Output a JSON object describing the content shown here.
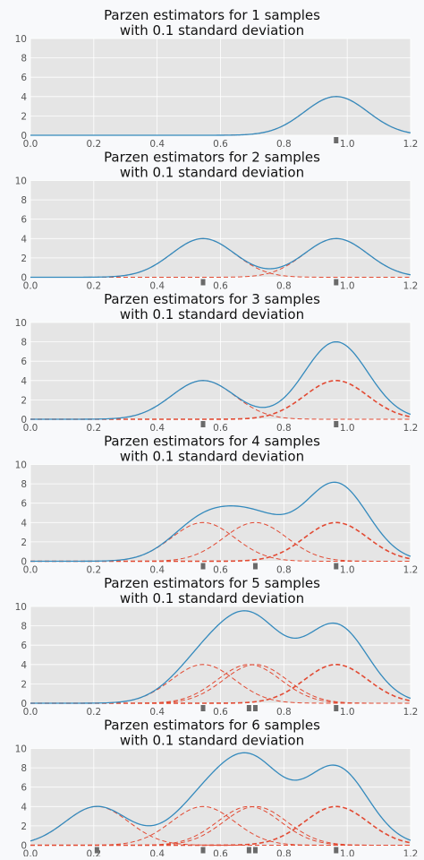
{
  "chart_data": [
    {
      "type": "line",
      "title": "Parzen estimators for 1 samples",
      "subtitle": "with 0.1 standard deviation",
      "samples": [
        0.965
      ],
      "ylim": [
        0,
        10
      ],
      "xlim": [
        0.0,
        1.2
      ],
      "sigma": 0.1,
      "grid": true,
      "xticks": [
        "0.0",
        "0.2",
        "0.4",
        "0.6",
        "0.8",
        "1.0",
        "1.2"
      ],
      "yticks": [
        "0",
        "2",
        "4",
        "6",
        "8",
        "10"
      ]
    },
    {
      "type": "line",
      "title": "Parzen estimators for 2 samples",
      "subtitle": "with 0.1 standard deviation",
      "samples": [
        0.545,
        0.965
      ],
      "ylim": [
        0,
        10
      ],
      "xlim": [
        0.0,
        1.2
      ],
      "sigma": 0.1,
      "grid": true,
      "xticks": [
        "0.0",
        "0.2",
        "0.4",
        "0.6",
        "0.8",
        "1.0",
        "1.2"
      ],
      "yticks": [
        "0",
        "2",
        "4",
        "6",
        "8",
        "10"
      ]
    },
    {
      "type": "line",
      "title": "Parzen estimators for 3 samples",
      "subtitle": "with 0.1 standard deviation",
      "samples": [
        0.545,
        0.965,
        0.965
      ],
      "ylim": [
        0,
        10
      ],
      "xlim": [
        0.0,
        1.2
      ],
      "sigma": 0.1,
      "grid": true,
      "xticks": [
        "0.0",
        "0.2",
        "0.4",
        "0.6",
        "0.8",
        "1.0",
        "1.2"
      ],
      "yticks": [
        "0",
        "2",
        "4",
        "6",
        "8",
        "10"
      ]
    },
    {
      "type": "line",
      "title": "Parzen estimators for 4 samples",
      "subtitle": "with 0.1 standard deviation",
      "samples": [
        0.545,
        0.71,
        0.965,
        0.965
      ],
      "ylim": [
        0,
        10
      ],
      "xlim": [
        0.0,
        1.2
      ],
      "sigma": 0.1,
      "grid": true,
      "xticks": [
        "0.0",
        "0.2",
        "0.4",
        "0.6",
        "0.8",
        "1.0",
        "1.2"
      ],
      "yticks": [
        "0",
        "2",
        "4",
        "6",
        "8",
        "10"
      ]
    },
    {
      "type": "line",
      "title": "Parzen estimators for 5 samples",
      "subtitle": "with 0.1 standard deviation",
      "samples": [
        0.545,
        0.69,
        0.71,
        0.965,
        0.965
      ],
      "ylim": [
        0,
        10
      ],
      "xlim": [
        0.0,
        1.2
      ],
      "sigma": 0.1,
      "grid": true,
      "xticks": [
        "0.0",
        "0.2",
        "0.4",
        "0.6",
        "0.8",
        "1.0",
        "1.2"
      ],
      "yticks": [
        "0",
        "2",
        "4",
        "6",
        "8",
        "10"
      ]
    },
    {
      "type": "line",
      "title": "Parzen estimators for 6 samples",
      "subtitle": "with 0.1 standard deviation",
      "samples": [
        0.21,
        0.545,
        0.69,
        0.71,
        0.965,
        0.965
      ],
      "ylim": [
        0,
        10
      ],
      "xlim": [
        0.0,
        1.2
      ],
      "sigma": 0.1,
      "grid": true,
      "xticks": [
        "0.0",
        "0.2",
        "0.4",
        "0.6",
        "0.8",
        "1.0",
        "1.2"
      ],
      "yticks": [
        "0",
        "2",
        "4",
        "6",
        "8",
        "10"
      ]
    }
  ],
  "colors": {
    "sum_line": "#348abd",
    "kernel_line": "#e24a33",
    "sample_marker": "#6a6a6a",
    "plot_bg": "#e5e5e5",
    "grid": "#ffffff",
    "axis_text": "#555555"
  }
}
